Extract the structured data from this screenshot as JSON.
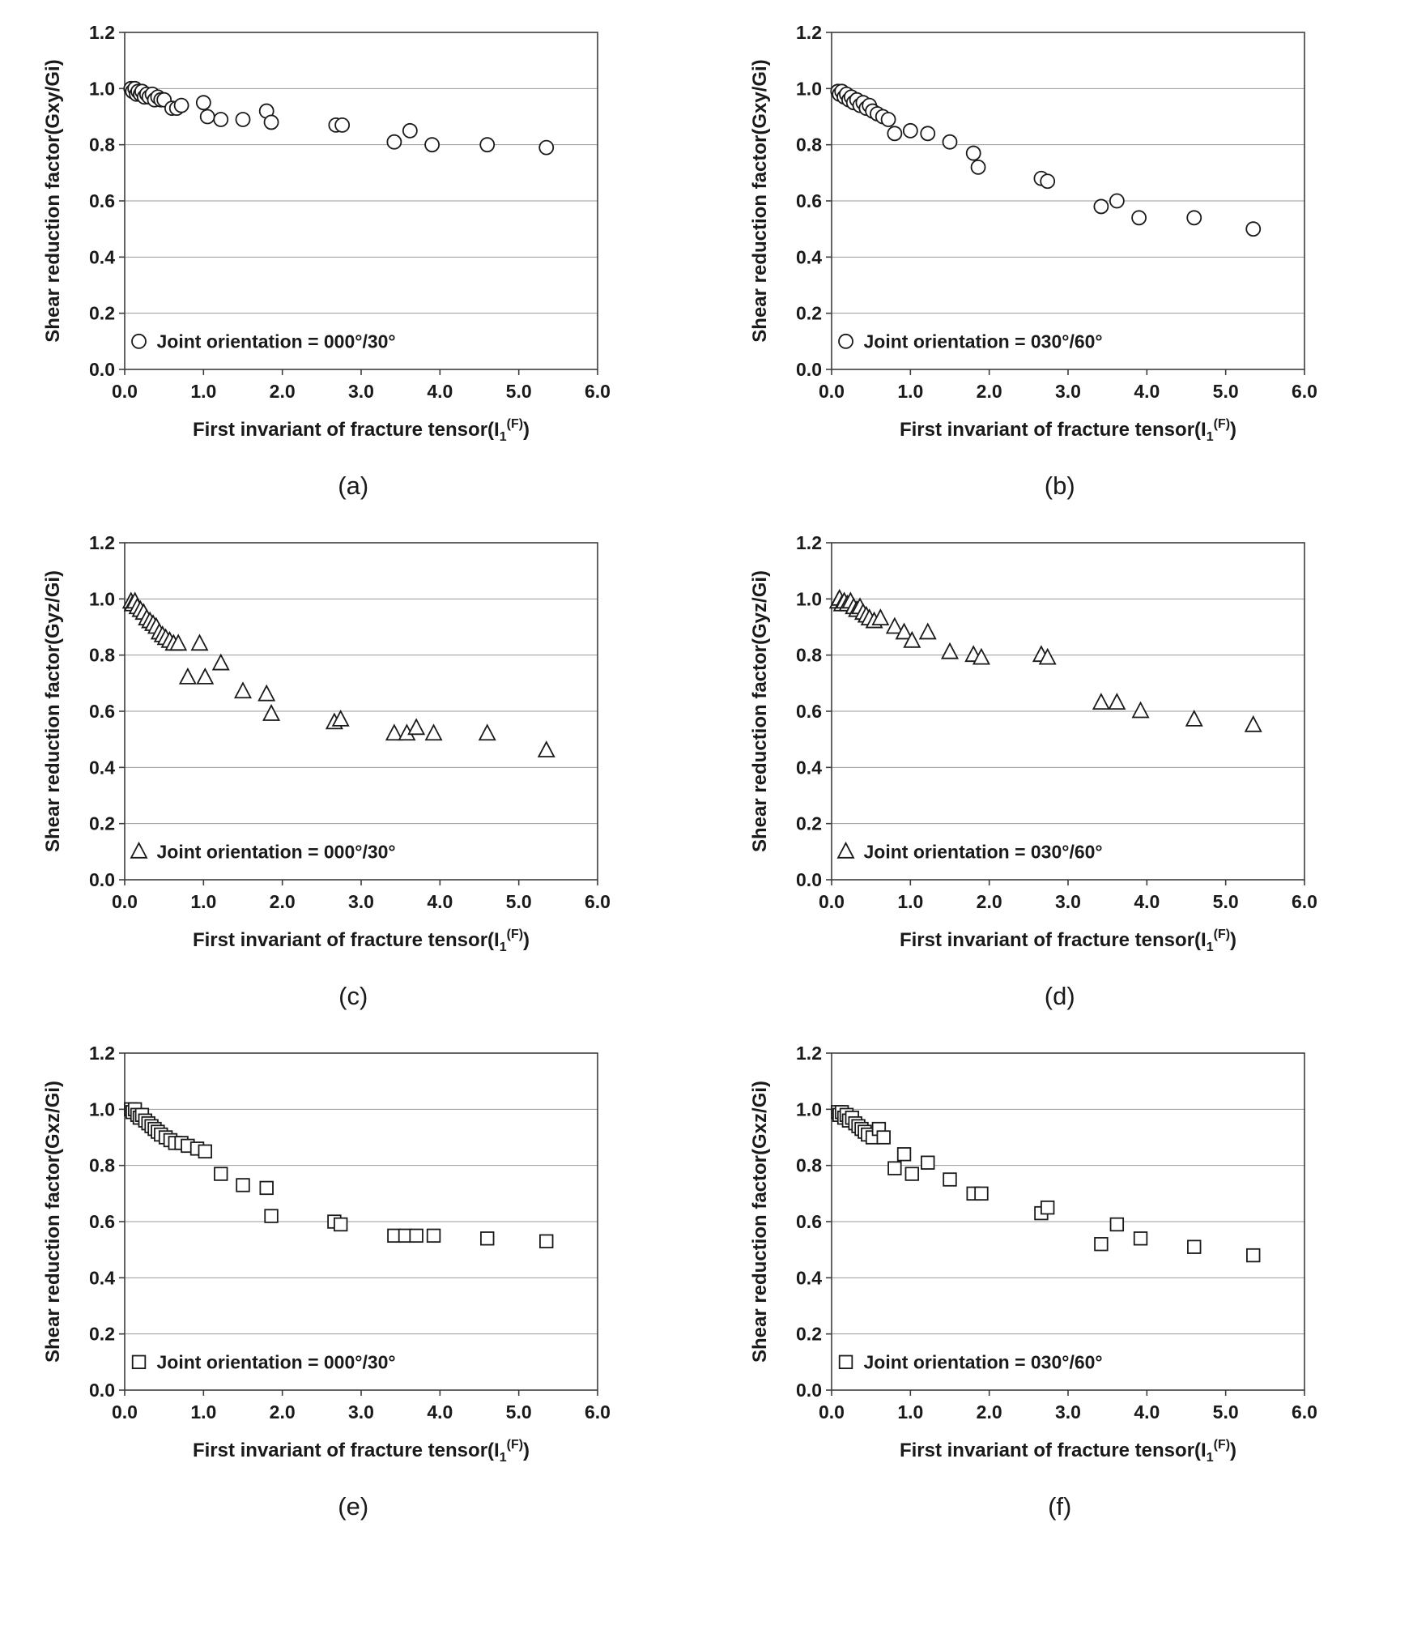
{
  "figure_title": "",
  "axes": {
    "xlabel": {
      "prefix": "First invariant of fracture tensor(I",
      "sub": "1",
      "sup": "(F)",
      "suffix": ")"
    },
    "xlim": [
      0.0,
      6.0
    ],
    "ylim": [
      0.0,
      1.2
    ],
    "xticks": {
      "values": [
        0,
        1,
        2,
        3,
        4,
        5,
        6
      ],
      "labels": [
        "0.0",
        "1.0",
        "2.0",
        "3.0",
        "4.0",
        "5.0",
        "6.0"
      ]
    },
    "yticks": {
      "values": [
        0,
        0.2,
        0.4,
        0.6,
        0.8,
        1.0,
        1.2
      ],
      "labels": [
        "0.0",
        "0.2",
        "0.4",
        "0.6",
        "0.8",
        "1.0",
        "1.2"
      ]
    },
    "grid": "horizontal-only",
    "legend_position": "lower-left",
    "marker_fill": "#ffffff",
    "marker_color": "#1a1a1a"
  },
  "chart_data": [
    {
      "type": "scatter",
      "panel": "(a)",
      "marker": "circle",
      "ylabel": "Shear reduction factor(Gxy/Gi)",
      "xlabel": "First invariant of fracture tensor(I1(F))",
      "legend": "Joint orientation = 000°/30°",
      "xlim": [
        0.0,
        6.0
      ],
      "ylim": [
        0.0,
        1.2
      ],
      "points": [
        [
          0.08,
          1.0
        ],
        [
          0.1,
          0.99
        ],
        [
          0.13,
          1.0
        ],
        [
          0.15,
          0.98
        ],
        [
          0.17,
          0.99
        ],
        [
          0.2,
          0.98
        ],
        [
          0.22,
          0.99
        ],
        [
          0.25,
          0.97
        ],
        [
          0.28,
          0.98
        ],
        [
          0.31,
          0.97
        ],
        [
          0.35,
          0.98
        ],
        [
          0.38,
          0.96
        ],
        [
          0.42,
          0.97
        ],
        [
          0.46,
          0.96
        ],
        [
          0.5,
          0.96
        ],
        [
          0.6,
          0.93
        ],
        [
          0.66,
          0.93
        ],
        [
          0.72,
          0.94
        ],
        [
          1.0,
          0.95
        ],
        [
          1.05,
          0.9
        ],
        [
          1.22,
          0.89
        ],
        [
          1.5,
          0.89
        ],
        [
          1.8,
          0.92
        ],
        [
          1.86,
          0.88
        ],
        [
          2.68,
          0.87
        ],
        [
          2.76,
          0.87
        ],
        [
          3.42,
          0.81
        ],
        [
          3.62,
          0.85
        ],
        [
          3.9,
          0.8
        ],
        [
          4.6,
          0.8
        ],
        [
          5.35,
          0.79
        ]
      ]
    },
    {
      "type": "scatter",
      "panel": "(b)",
      "marker": "circle",
      "ylabel": "Shear reduction factor(Gxy/Gi)",
      "xlabel": "First invariant of fracture tensor(I1(F))",
      "legend": "Joint orientation = 030°/60°",
      "xlim": [
        0.0,
        6.0
      ],
      "ylim": [
        0.0,
        1.2
      ],
      "points": [
        [
          0.08,
          0.99
        ],
        [
          0.1,
          0.98
        ],
        [
          0.13,
          0.99
        ],
        [
          0.16,
          0.97
        ],
        [
          0.19,
          0.98
        ],
        [
          0.22,
          0.96
        ],
        [
          0.25,
          0.97
        ],
        [
          0.28,
          0.95
        ],
        [
          0.32,
          0.96
        ],
        [
          0.36,
          0.94
        ],
        [
          0.4,
          0.95
        ],
        [
          0.44,
          0.93
        ],
        [
          0.48,
          0.94
        ],
        [
          0.52,
          0.92
        ],
        [
          0.58,
          0.91
        ],
        [
          0.65,
          0.9
        ],
        [
          0.72,
          0.89
        ],
        [
          0.8,
          0.84
        ],
        [
          1.0,
          0.85
        ],
        [
          1.22,
          0.84
        ],
        [
          1.5,
          0.81
        ],
        [
          1.8,
          0.77
        ],
        [
          1.86,
          0.72
        ],
        [
          2.66,
          0.68
        ],
        [
          2.74,
          0.67
        ],
        [
          3.42,
          0.58
        ],
        [
          3.62,
          0.6
        ],
        [
          3.9,
          0.54
        ],
        [
          4.6,
          0.54
        ],
        [
          5.35,
          0.5
        ]
      ]
    },
    {
      "type": "scatter",
      "panel": "(c)",
      "marker": "triangle",
      "ylabel": "Shear reduction factor(Gyz/Gi)",
      "xlabel": "First invariant of fracture tensor(I1(F))",
      "legend": "Joint orientation = 000°/30°",
      "xlim": [
        0.0,
        6.0
      ],
      "ylim": [
        0.0,
        1.2
      ],
      "points": [
        [
          0.08,
          0.99
        ],
        [
          0.1,
          0.98
        ],
        [
          0.13,
          0.99
        ],
        [
          0.16,
          0.97
        ],
        [
          0.2,
          0.96
        ],
        [
          0.24,
          0.95
        ],
        [
          0.28,
          0.93
        ],
        [
          0.32,
          0.92
        ],
        [
          0.36,
          0.91
        ],
        [
          0.4,
          0.9
        ],
        [
          0.44,
          0.88
        ],
        [
          0.48,
          0.87
        ],
        [
          0.52,
          0.86
        ],
        [
          0.57,
          0.85
        ],
        [
          0.62,
          0.84
        ],
        [
          0.68,
          0.84
        ],
        [
          0.8,
          0.72
        ],
        [
          0.95,
          0.84
        ],
        [
          1.02,
          0.72
        ],
        [
          1.22,
          0.77
        ],
        [
          1.5,
          0.67
        ],
        [
          1.8,
          0.66
        ],
        [
          1.86,
          0.59
        ],
        [
          2.66,
          0.56
        ],
        [
          2.74,
          0.57
        ],
        [
          3.42,
          0.52
        ],
        [
          3.58,
          0.52
        ],
        [
          3.7,
          0.54
        ],
        [
          3.92,
          0.52
        ],
        [
          4.6,
          0.52
        ],
        [
          5.35,
          0.46
        ]
      ]
    },
    {
      "type": "scatter",
      "panel": "(d)",
      "marker": "triangle",
      "ylabel": "Shear reduction factor(Gyz/Gi)",
      "xlabel": "First invariant of fracture tensor(I1(F))",
      "legend": "Joint orientation = 030°/60°",
      "xlim": [
        0.0,
        6.0
      ],
      "ylim": [
        0.0,
        1.2
      ],
      "points": [
        [
          0.08,
          0.99
        ],
        [
          0.1,
          1.0
        ],
        [
          0.13,
          0.98
        ],
        [
          0.16,
          0.99
        ],
        [
          0.2,
          0.98
        ],
        [
          0.24,
          0.99
        ],
        [
          0.28,
          0.97
        ],
        [
          0.32,
          0.96
        ],
        [
          0.36,
          0.97
        ],
        [
          0.4,
          0.95
        ],
        [
          0.44,
          0.94
        ],
        [
          0.48,
          0.93
        ],
        [
          0.54,
          0.92
        ],
        [
          0.62,
          0.93
        ],
        [
          0.8,
          0.9
        ],
        [
          0.92,
          0.88
        ],
        [
          1.02,
          0.85
        ],
        [
          1.22,
          0.88
        ],
        [
          1.5,
          0.81
        ],
        [
          1.8,
          0.8
        ],
        [
          1.9,
          0.79
        ],
        [
          2.66,
          0.8
        ],
        [
          2.74,
          0.79
        ],
        [
          3.42,
          0.63
        ],
        [
          3.62,
          0.63
        ],
        [
          3.92,
          0.6
        ],
        [
          4.6,
          0.57
        ],
        [
          5.35,
          0.55
        ]
      ]
    },
    {
      "type": "scatter",
      "panel": "(e)",
      "marker": "square",
      "ylabel": "Shear reduction factor(Gxz/Gi)",
      "xlabel": "First invariant of fracture tensor(I1(F))",
      "legend": "Joint orientation = 000°/30°",
      "xlim": [
        0.0,
        6.0
      ],
      "ylim": [
        0.0,
        1.2
      ],
      "points": [
        [
          0.08,
          1.0
        ],
        [
          0.1,
          0.99
        ],
        [
          0.13,
          1.0
        ],
        [
          0.16,
          0.98
        ],
        [
          0.19,
          0.97
        ],
        [
          0.22,
          0.98
        ],
        [
          0.26,
          0.96
        ],
        [
          0.3,
          0.95
        ],
        [
          0.34,
          0.94
        ],
        [
          0.38,
          0.93
        ],
        [
          0.42,
          0.92
        ],
        [
          0.46,
          0.91
        ],
        [
          0.52,
          0.9
        ],
        [
          0.58,
          0.89
        ],
        [
          0.64,
          0.88
        ],
        [
          0.72,
          0.88
        ],
        [
          0.8,
          0.87
        ],
        [
          0.92,
          0.86
        ],
        [
          1.02,
          0.85
        ],
        [
          1.22,
          0.77
        ],
        [
          1.5,
          0.73
        ],
        [
          1.8,
          0.72
        ],
        [
          1.86,
          0.62
        ],
        [
          2.66,
          0.6
        ],
        [
          2.74,
          0.59
        ],
        [
          3.42,
          0.55
        ],
        [
          3.56,
          0.55
        ],
        [
          3.7,
          0.55
        ],
        [
          3.92,
          0.55
        ],
        [
          4.6,
          0.54
        ],
        [
          5.35,
          0.53
        ]
      ]
    },
    {
      "type": "scatter",
      "panel": "(f)",
      "marker": "square",
      "ylabel": "Shear reduction factor(Gxz/Gi)",
      "xlabel": "First invariant of fracture tensor(I1(F))",
      "legend": "Joint orientation = 030°/60°",
      "xlim": [
        0.0,
        6.0
      ],
      "ylim": [
        0.0,
        1.2
      ],
      "points": [
        [
          0.08,
          0.99
        ],
        [
          0.1,
          0.98
        ],
        [
          0.13,
          0.99
        ],
        [
          0.16,
          0.97
        ],
        [
          0.19,
          0.98
        ],
        [
          0.22,
          0.96
        ],
        [
          0.26,
          0.97
        ],
        [
          0.3,
          0.95
        ],
        [
          0.34,
          0.94
        ],
        [
          0.38,
          0.93
        ],
        [
          0.42,
          0.92
        ],
        [
          0.46,
          0.91
        ],
        [
          0.52,
          0.9
        ],
        [
          0.6,
          0.93
        ],
        [
          0.66,
          0.9
        ],
        [
          0.8,
          0.79
        ],
        [
          0.92,
          0.84
        ],
        [
          1.02,
          0.77
        ],
        [
          1.22,
          0.81
        ],
        [
          1.5,
          0.75
        ],
        [
          1.8,
          0.7
        ],
        [
          1.9,
          0.7
        ],
        [
          2.66,
          0.63
        ],
        [
          2.74,
          0.65
        ],
        [
          3.42,
          0.52
        ],
        [
          3.62,
          0.59
        ],
        [
          3.92,
          0.54
        ],
        [
          4.6,
          0.51
        ],
        [
          5.35,
          0.48
        ]
      ]
    }
  ]
}
